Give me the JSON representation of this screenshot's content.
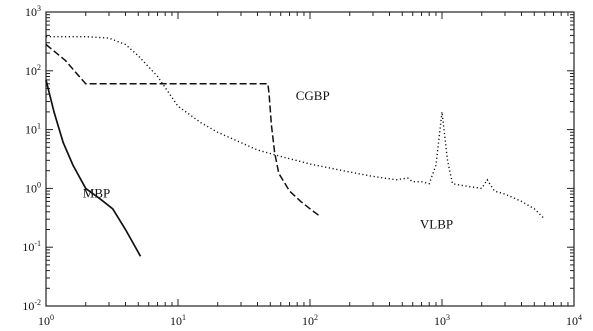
{
  "chart_data": {
    "type": "line",
    "title": "",
    "xlabel": "",
    "ylabel": "",
    "xscale": "log",
    "yscale": "log",
    "xlim": [
      1,
      10000
    ],
    "ylim": [
      0.01,
      1000
    ],
    "grid": false,
    "x_ticks": [
      {
        "base": "10",
        "exp": "0"
      },
      {
        "base": "10",
        "exp": "1"
      },
      {
        "base": "10",
        "exp": "2"
      },
      {
        "base": "10",
        "exp": "3"
      },
      {
        "base": "10",
        "exp": "4"
      }
    ],
    "y_ticks": [
      {
        "base": "10",
        "exp": "-2"
      },
      {
        "base": "10",
        "exp": "-1"
      },
      {
        "base": "10",
        "exp": "0"
      },
      {
        "base": "10",
        "exp": "1"
      },
      {
        "base": "10",
        "exp": "2"
      },
      {
        "base": "10",
        "exp": "3"
      }
    ],
    "series": [
      {
        "name": "MBP",
        "style": "solid",
        "label_at": [
          1.9,
          0.7
        ],
        "points": [
          [
            1.0,
            70
          ],
          [
            1.15,
            20
          ],
          [
            1.35,
            6
          ],
          [
            1.6,
            2.5
          ],
          [
            2.0,
            1.0
          ],
          [
            2.6,
            0.65
          ],
          [
            3.2,
            0.45
          ],
          [
            4.0,
            0.2
          ],
          [
            5.2,
            0.07
          ]
        ]
      },
      {
        "name": "CGBP",
        "style": "dashed",
        "label_at": [
          78,
          32
        ],
        "points": [
          [
            1.0,
            280
          ],
          [
            1.4,
            150
          ],
          [
            2.0,
            60
          ],
          [
            10,
            60
          ],
          [
            20,
            60
          ],
          [
            48,
            60
          ],
          [
            49,
            40
          ],
          [
            51,
            12
          ],
          [
            54,
            4
          ],
          [
            58,
            1.8
          ],
          [
            70,
            0.9
          ],
          [
            85,
            0.6
          ],
          [
            100,
            0.45
          ],
          [
            120,
            0.33
          ]
        ]
      },
      {
        "name": "VLBP",
        "style": "dotted",
        "label_at": [
          680,
          0.21
        ],
        "points": [
          [
            1.0,
            380
          ],
          [
            2.0,
            380
          ],
          [
            3.0,
            360
          ],
          [
            4.0,
            280
          ],
          [
            5.0,
            180
          ],
          [
            7.0,
            80
          ],
          [
            10,
            25
          ],
          [
            15,
            13
          ],
          [
            20,
            9
          ],
          [
            30,
            6
          ],
          [
            40,
            4.5
          ],
          [
            60,
            3.5
          ],
          [
            100,
            2.6
          ],
          [
            200,
            1.9
          ],
          [
            300,
            1.6
          ],
          [
            450,
            1.4
          ],
          [
            550,
            1.5
          ],
          [
            600,
            1.3
          ],
          [
            700,
            1.3
          ],
          [
            800,
            1.2
          ],
          [
            900,
            2.5
          ],
          [
            1000,
            20
          ],
          [
            1100,
            3
          ],
          [
            1200,
            1.2
          ],
          [
            1500,
            1.1
          ],
          [
            2000,
            1.0
          ],
          [
            2200,
            1.4
          ],
          [
            2500,
            0.9
          ],
          [
            3000,
            0.8
          ],
          [
            4000,
            0.6
          ],
          [
            5000,
            0.45
          ],
          [
            6000,
            0.3
          ]
        ]
      }
    ]
  }
}
